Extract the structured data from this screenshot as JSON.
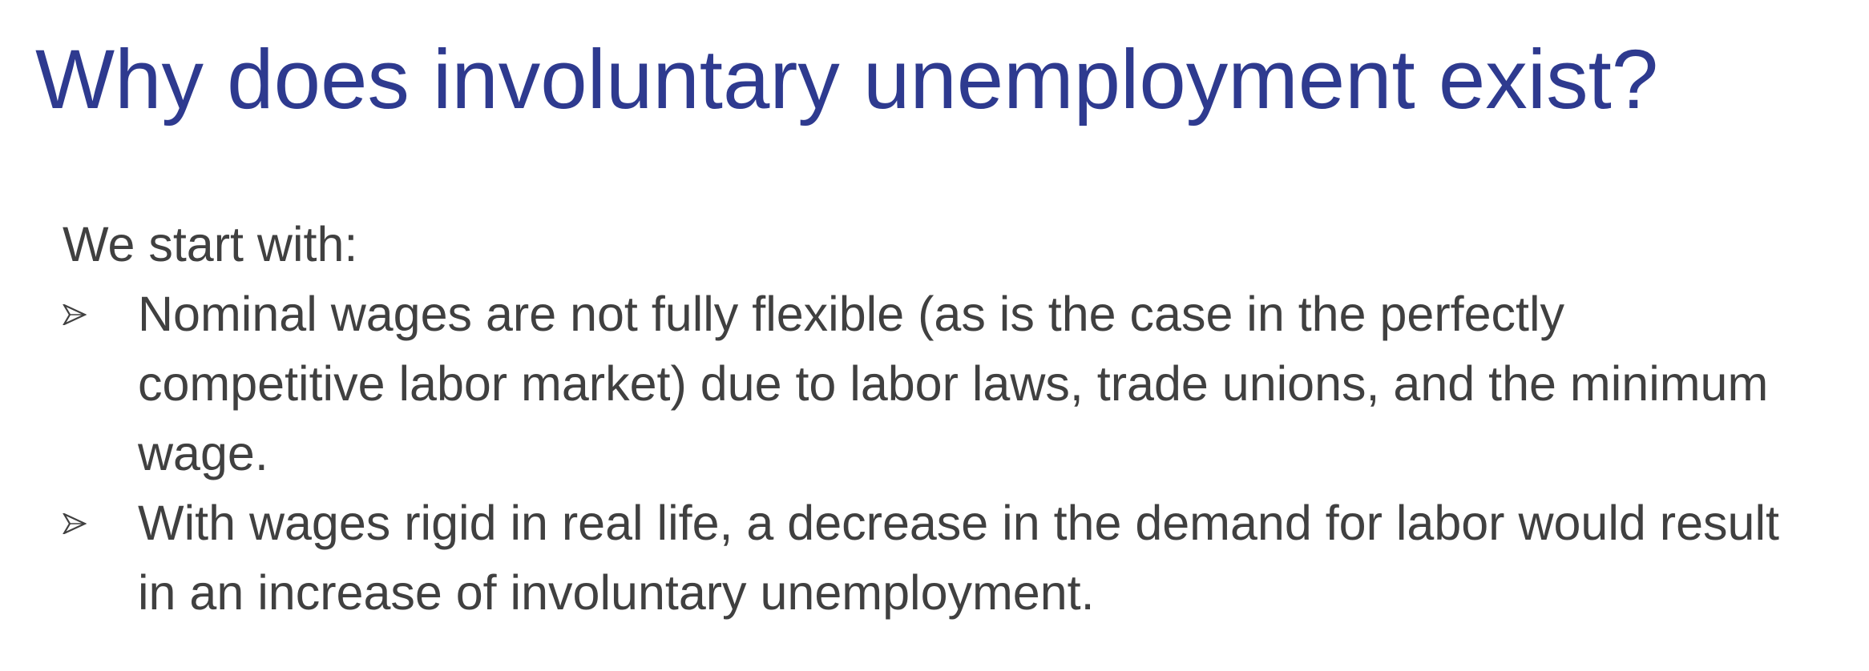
{
  "slide": {
    "title": "Why does involuntary unemployment exist?",
    "intro": "We start with:",
    "bullet_icon": "arrowhead-bullet-icon",
    "bullets": [
      {
        "lines": [
          "Nominal wages are not fully flexible (as is the case in the perfectly",
          "competitive labor market) due to labor laws, trade unions, and the minimum",
          "wage."
        ]
      },
      {
        "lines": [
          "With wages rigid in real life, a decrease in the demand for labor would result",
          "in an increase of involuntary unemployment."
        ]
      }
    ]
  },
  "colors": {
    "title": "#2e3a8f",
    "body_text": "#404040",
    "background": "#ffffff"
  }
}
